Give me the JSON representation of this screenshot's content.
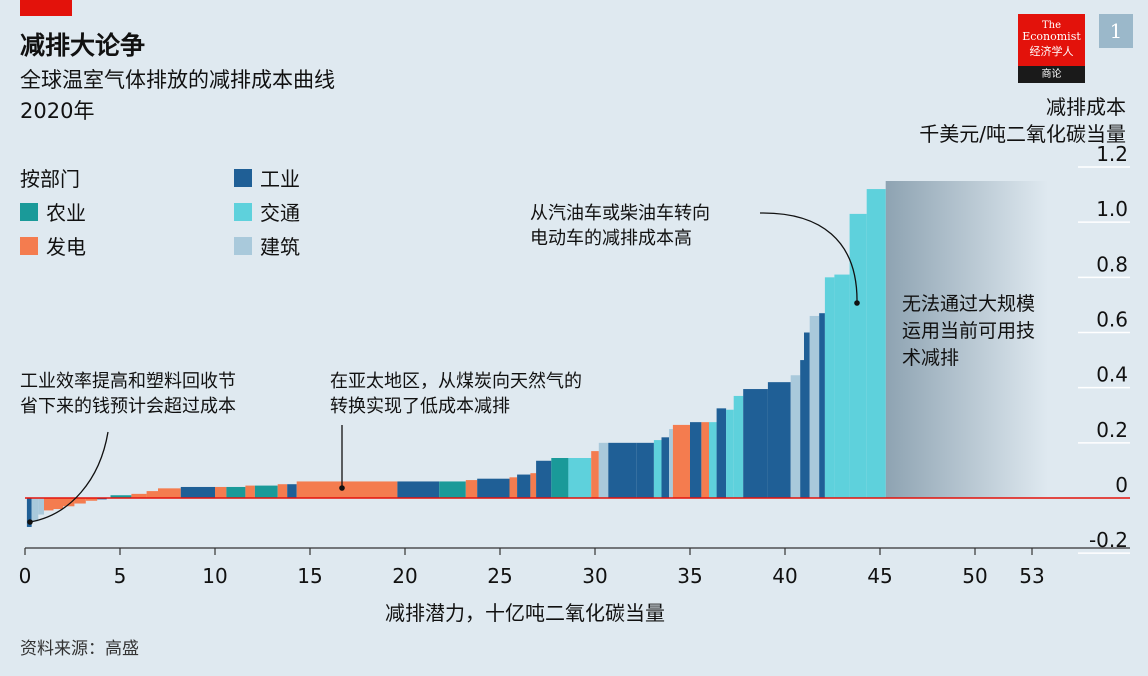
{
  "header": {
    "title": "减排大论争",
    "subtitle": "全球温室气体排放的减排成本曲线",
    "year": "2020年"
  },
  "brand": {
    "line1": "The",
    "line2": "Economist",
    "line3": "经济学人",
    "line4": "商论",
    "page_number": "1",
    "accent_color": "#e3120b"
  },
  "legend": {
    "title": "按部门",
    "items": [
      {
        "label": "工业",
        "color": "#1f5f96"
      },
      {
        "label": "农业",
        "color": "#1a9a99"
      },
      {
        "label": "发电",
        "color": "#f47c4f"
      },
      {
        "label": "交通",
        "color": "#5ed1dc"
      },
      {
        "label": "建筑",
        "color": "#a9c9db"
      }
    ]
  },
  "annotations": {
    "left": "工业效率提高和塑料回收节\n省下来的钱预计会超过成本",
    "middle": "在亚太地区，从煤炭向天然气的\n转换实现了低成本减排",
    "right": "从汽油车或柴油车转向\n电动车的减排成本高",
    "shaded": "无法通过大规模\n运用当前可用技\n术减排"
  },
  "source": "资料来源：高盛",
  "chart_data": {
    "type": "bar",
    "subtype": "marginal-abatement-cost-curve",
    "xlabel": "减排潜力，十亿吨二氧化碳当量",
    "ylabel_line1": "减排成本",
    "ylabel_line2": "千美元/吨二氧化碳当量",
    "xlim": [
      0,
      53
    ],
    "ylim": [
      -0.2,
      1.2
    ],
    "x_ticks": [
      "0",
      "5",
      "10",
      "15",
      "20",
      "25",
      "30",
      "35",
      "40",
      "45",
      "50",
      "53"
    ],
    "y_ticks": [
      "1.2",
      "1.0",
      "0.8",
      "0.6",
      "0.4",
      "0.2",
      "0",
      "-0.2"
    ],
    "y_tick_values": [
      1.2,
      1.0,
      0.8,
      0.6,
      0.4,
      0.2,
      0,
      -0.2
    ],
    "x_tick_values": [
      0,
      5,
      10,
      15,
      20,
      25,
      30,
      35,
      40,
      45,
      50,
      53
    ],
    "unabated_range": [
      45.3,
      53
    ],
    "sector_colors": {
      "industry": "#1f5f96",
      "agriculture": "#1a9a99",
      "power": "#f47c4f",
      "transport": "#5ed1dc",
      "buildings": "#a9c9db"
    },
    "bars": [
      {
        "sector": "industry",
        "x0": 0.1,
        "x1": 0.35,
        "y": -0.105
      },
      {
        "sector": "buildings",
        "x0": 0.35,
        "x1": 0.7,
        "y": -0.085
      },
      {
        "sector": "buildings",
        "x0": 0.7,
        "x1": 1.0,
        "y": -0.06
      },
      {
        "sector": "power",
        "x0": 1.0,
        "x1": 1.5,
        "y": -0.045
      },
      {
        "sector": "power",
        "x0": 1.5,
        "x1": 2.0,
        "y": -0.04
      },
      {
        "sector": "power",
        "x0": 2.0,
        "x1": 2.6,
        "y": -0.03
      },
      {
        "sector": "power",
        "x0": 2.6,
        "x1": 3.2,
        "y": -0.02
      },
      {
        "sector": "power",
        "x0": 3.2,
        "x1": 3.8,
        "y": -0.01
      },
      {
        "sector": "industry",
        "x0": 3.8,
        "x1": 4.3,
        "y": -0.005
      },
      {
        "sector": "agriculture",
        "x0": 4.5,
        "x1": 5.6,
        "y": 0.01
      },
      {
        "sector": "power",
        "x0": 5.6,
        "x1": 6.4,
        "y": 0.015
      },
      {
        "sector": "power",
        "x0": 6.4,
        "x1": 7.0,
        "y": 0.025
      },
      {
        "sector": "power",
        "x0": 7.0,
        "x1": 8.2,
        "y": 0.035
      },
      {
        "sector": "industry",
        "x0": 8.2,
        "x1": 10.0,
        "y": 0.04
      },
      {
        "sector": "power",
        "x0": 10.0,
        "x1": 10.6,
        "y": 0.04
      },
      {
        "sector": "agriculture",
        "x0": 10.6,
        "x1": 11.6,
        "y": 0.04
      },
      {
        "sector": "power",
        "x0": 11.6,
        "x1": 12.1,
        "y": 0.045
      },
      {
        "sector": "agriculture",
        "x0": 12.1,
        "x1": 13.3,
        "y": 0.045
      },
      {
        "sector": "power",
        "x0": 13.3,
        "x1": 13.8,
        "y": 0.05
      },
      {
        "sector": "industry",
        "x0": 13.8,
        "x1": 14.3,
        "y": 0.05
      },
      {
        "sector": "power",
        "x0": 14.3,
        "x1": 19.6,
        "y": 0.06
      },
      {
        "sector": "industry",
        "x0": 19.6,
        "x1": 21.8,
        "y": 0.06
      },
      {
        "sector": "agriculture",
        "x0": 21.8,
        "x1": 23.2,
        "y": 0.06
      },
      {
        "sector": "power",
        "x0": 23.2,
        "x1": 23.8,
        "y": 0.065
      },
      {
        "sector": "industry",
        "x0": 23.8,
        "x1": 25.5,
        "y": 0.07
      },
      {
        "sector": "power",
        "x0": 25.5,
        "x1": 25.9,
        "y": 0.075
      },
      {
        "sector": "industry",
        "x0": 25.9,
        "x1": 26.6,
        "y": 0.085
      },
      {
        "sector": "power",
        "x0": 26.6,
        "x1": 26.9,
        "y": 0.09
      },
      {
        "sector": "industry",
        "x0": 26.9,
        "x1": 27.7,
        "y": 0.135
      },
      {
        "sector": "agriculture",
        "x0": 27.7,
        "x1": 28.6,
        "y": 0.145
      },
      {
        "sector": "transport",
        "x0": 28.6,
        "x1": 29.8,
        "y": 0.145
      },
      {
        "sector": "power",
        "x0": 29.8,
        "x1": 30.2,
        "y": 0.17
      },
      {
        "sector": "buildings",
        "x0": 30.2,
        "x1": 30.7,
        "y": 0.2
      },
      {
        "sector": "industry",
        "x0": 30.7,
        "x1": 32.2,
        "y": 0.2
      },
      {
        "sector": "industry",
        "x0": 32.2,
        "x1": 33.1,
        "y": 0.2
      },
      {
        "sector": "transport",
        "x0": 33.1,
        "x1": 33.5,
        "y": 0.21
      },
      {
        "sector": "industry",
        "x0": 33.5,
        "x1": 33.9,
        "y": 0.22
      },
      {
        "sector": "buildings",
        "x0": 33.9,
        "x1": 34.1,
        "y": 0.25
      },
      {
        "sector": "power",
        "x0": 34.1,
        "x1": 35.0,
        "y": 0.265
      },
      {
        "sector": "industry",
        "x0": 35.0,
        "x1": 35.6,
        "y": 0.275
      },
      {
        "sector": "power",
        "x0": 35.6,
        "x1": 36.0,
        "y": 0.275
      },
      {
        "sector": "transport",
        "x0": 36.0,
        "x1": 36.4,
        "y": 0.275
      },
      {
        "sector": "industry",
        "x0": 36.4,
        "x1": 36.9,
        "y": 0.325
      },
      {
        "sector": "transport",
        "x0": 36.9,
        "x1": 37.3,
        "y": 0.32
      },
      {
        "sector": "transport",
        "x0": 37.3,
        "x1": 37.8,
        "y": 0.37
      },
      {
        "sector": "industry",
        "x0": 37.8,
        "x1": 39.1,
        "y": 0.395
      },
      {
        "sector": "industry",
        "x0": 39.1,
        "x1": 40.3,
        "y": 0.42
      },
      {
        "sector": "buildings",
        "x0": 40.3,
        "x1": 40.8,
        "y": 0.445
      },
      {
        "sector": "industry",
        "x0": 40.8,
        "x1": 41.0,
        "y": 0.5
      },
      {
        "sector": "industry",
        "x0": 41.0,
        "x1": 41.3,
        "y": 0.6
      },
      {
        "sector": "buildings",
        "x0": 41.3,
        "x1": 41.8,
        "y": 0.66
      },
      {
        "sector": "industry",
        "x0": 41.8,
        "x1": 42.1,
        "y": 0.67
      },
      {
        "sector": "transport",
        "x0": 42.1,
        "x1": 42.6,
        "y": 0.8
      },
      {
        "sector": "transport",
        "x0": 42.6,
        "x1": 43.4,
        "y": 0.81
      },
      {
        "sector": "transport",
        "x0": 43.4,
        "x1": 44.3,
        "y": 1.03
      },
      {
        "sector": "transport",
        "x0": 44.3,
        "x1": 45.3,
        "y": 1.12
      }
    ]
  }
}
